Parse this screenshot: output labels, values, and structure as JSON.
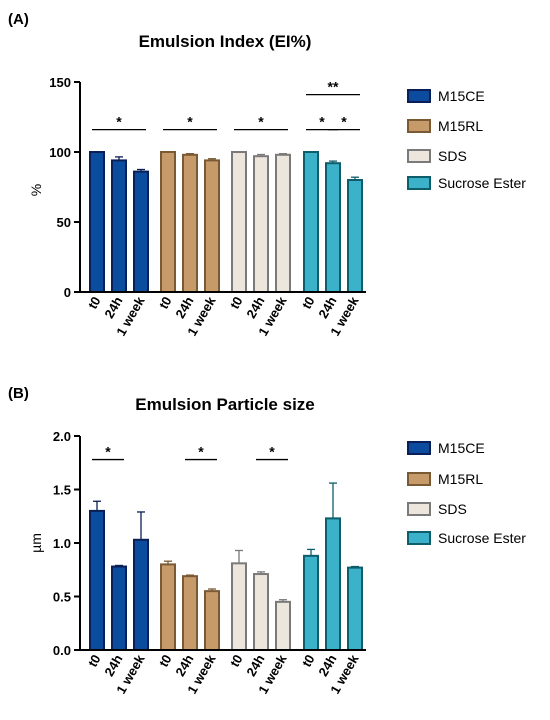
{
  "colors": {
    "M15CE": {
      "fill": "#0b4c9e",
      "stroke": "#0a1f55"
    },
    "M15RL": {
      "fill": "#c79a6a",
      "stroke": "#7a5a34"
    },
    "SDS": {
      "fill": "#ede6dc",
      "stroke": "#7a7a7a"
    },
    "Sucrose Ester": {
      "fill": "#3bb2c9",
      "stroke": "#0d5d6a"
    }
  },
  "chart_data": [
    {
      "panel": "(A)",
      "type": "bar",
      "title": "Emulsion Index (EI%)",
      "ylabel": "%",
      "ylim": [
        0,
        150
      ],
      "yticks": [
        "0",
        "50",
        "100",
        "150"
      ],
      "categories": [
        "t0",
        "24h",
        "1 week"
      ],
      "legend": [
        "M15CE",
        "M15RL",
        "SDS",
        "Sucrose Ester"
      ],
      "series": [
        {
          "name": "M15CE",
          "values": [
            100,
            94,
            86
          ],
          "errors": [
            0,
            2.5,
            1.5
          ]
        },
        {
          "name": "M15RL",
          "values": [
            100,
            98,
            94
          ],
          "errors": [
            0,
            0.8,
            1.2
          ]
        },
        {
          "name": "SDS",
          "values": [
            100,
            97,
            98
          ],
          "errors": [
            0,
            1.2,
            0.8
          ]
        },
        {
          "name": "Sucrose Ester",
          "values": [
            100,
            92,
            80
          ],
          "errors": [
            0,
            1.5,
            2
          ]
        }
      ],
      "significance": [
        {
          "series": 0,
          "from": 0,
          "to": 2,
          "y": 116,
          "label": "*"
        },
        {
          "series": 1,
          "from": 0,
          "to": 2,
          "y": 116,
          "label": "*"
        },
        {
          "series": 2,
          "from": 0,
          "to": 2,
          "y": 116,
          "label": "*"
        },
        {
          "series": 3,
          "from": 0,
          "to": 1,
          "y": 116,
          "label": "*"
        },
        {
          "series": 3,
          "from": 1,
          "to": 2,
          "y": 116,
          "label": "*"
        },
        {
          "series": 3,
          "from": 0,
          "to": 2,
          "y": 141,
          "label": "**"
        }
      ]
    },
    {
      "panel": "(B)",
      "type": "bar",
      "title": "Emulsion Particle size",
      "ylabel": "µm",
      "ylim": [
        0,
        2.0
      ],
      "yticks": [
        "0.0",
        "0.5",
        "1.0",
        "1.5",
        "2.0"
      ],
      "categories": [
        "t0",
        "24h",
        "1 week"
      ],
      "legend": [
        "M15CE",
        "M15RL",
        "SDS",
        "Sucrose Ester"
      ],
      "series": [
        {
          "name": "M15CE",
          "values": [
            1.3,
            0.78,
            1.03
          ],
          "errors": [
            0.09,
            0.01,
            0.26
          ]
        },
        {
          "name": "M15RL",
          "values": [
            0.8,
            0.69,
            0.55
          ],
          "errors": [
            0.03,
            0.01,
            0.02
          ]
        },
        {
          "name": "SDS",
          "values": [
            0.81,
            0.71,
            0.45
          ],
          "errors": [
            0.12,
            0.02,
            0.02
          ]
        },
        {
          "name": "Sucrose Ester",
          "values": [
            0.88,
            1.23,
            0.77
          ],
          "errors": [
            0.06,
            0.33,
            0.01
          ]
        }
      ],
      "significance": [
        {
          "series": 0,
          "from": 0,
          "to": 1,
          "y": 1.78,
          "label": "*"
        },
        {
          "series": 1,
          "from": 1,
          "to": 2,
          "y": 1.78,
          "label": "*"
        },
        {
          "series": 2,
          "from": 1,
          "to": 2,
          "y": 1.78,
          "label": "*"
        }
      ]
    }
  ]
}
